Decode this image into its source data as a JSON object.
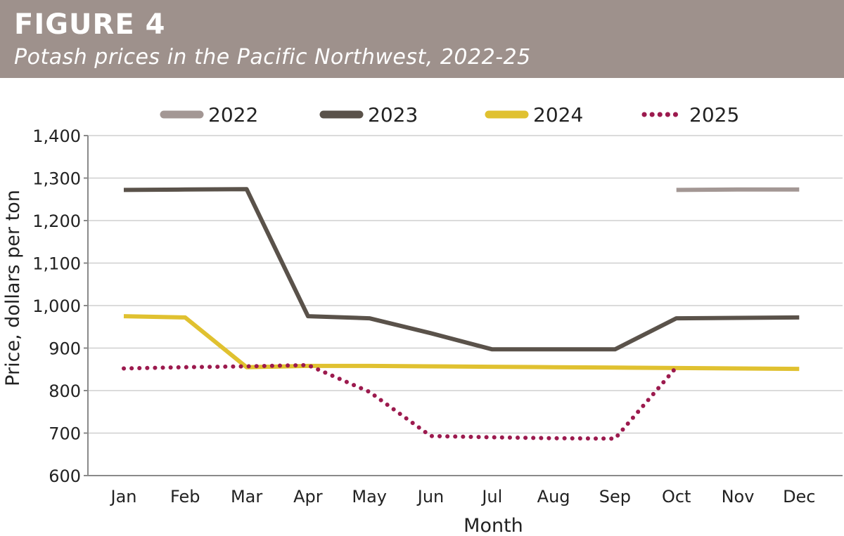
{
  "figure": {
    "label": "FIGURE 4",
    "subtitle": "Potash prices in the Pacific Northwest, 2022-25"
  },
  "chart_data": {
    "type": "line",
    "categories": [
      "Jan",
      "Feb",
      "Mar",
      "Apr",
      "May",
      "Jun",
      "Jul",
      "Aug",
      "Sep",
      "Oct",
      "Nov",
      "Dec"
    ],
    "xlabel": "Month",
    "ylabel": "Price, dollars per ton",
    "ylim": [
      600,
      1400
    ],
    "yticks": [
      600,
      700,
      800,
      900,
      1000,
      1100,
      1200,
      1300,
      1400
    ],
    "ytick_labels": [
      "600",
      "700",
      "800",
      "900",
      "1,000",
      "1,100",
      "1,200",
      "1,300",
      "1,400"
    ],
    "grid": "horizontal",
    "legend_position": "top",
    "series": [
      {
        "name": "2022",
        "color": "#a39794",
        "style": "solid",
        "values": [
          null,
          null,
          null,
          null,
          null,
          null,
          null,
          null,
          null,
          1272,
          1273,
          1273
        ]
      },
      {
        "name": "2023",
        "color": "#5a524a",
        "style": "solid",
        "values": [
          1272,
          1273,
          1274,
          975,
          970,
          935,
          897,
          897,
          897,
          970,
          971,
          972
        ]
      },
      {
        "name": "2024",
        "color": "#e0c130",
        "style": "solid",
        "values": [
          975,
          972,
          855,
          858,
          858,
          857,
          856,
          855,
          854,
          853,
          852,
          851
        ]
      },
      {
        "name": "2025",
        "color": "#9c1a4e",
        "style": "dotted",
        "values": [
          852,
          855,
          857,
          860,
          797,
          693,
          690,
          688,
          687,
          855,
          null,
          null
        ]
      }
    ]
  }
}
